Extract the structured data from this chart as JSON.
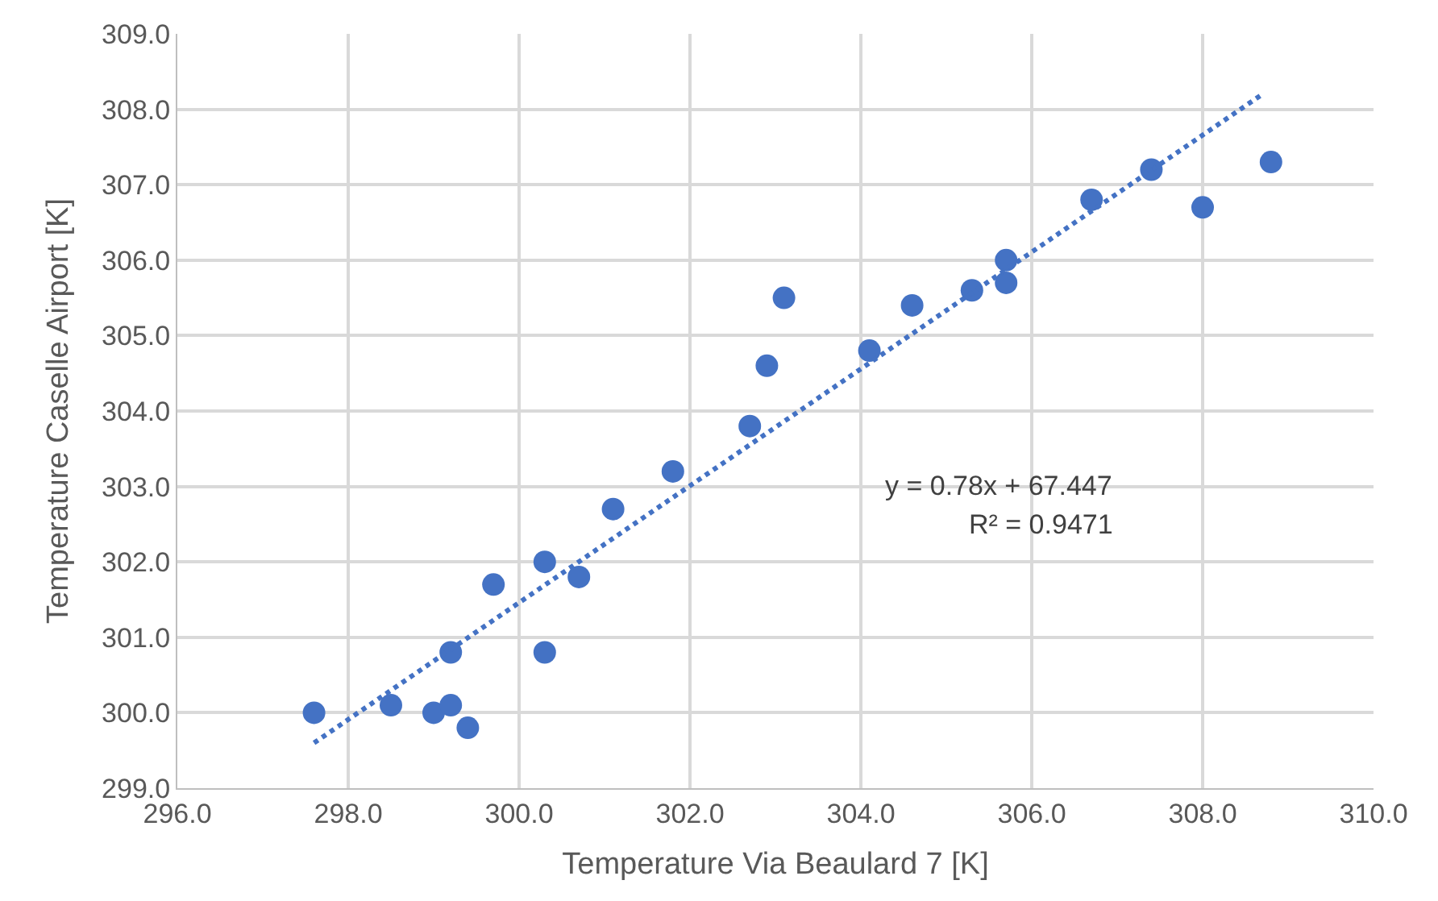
{
  "chart_data": {
    "type": "scatter",
    "xlabel": "Temperature Via Beaulard 7 [K]",
    "ylabel": "Temperature Caselle Airport [K]",
    "xlim": [
      296,
      310
    ],
    "xticks": [
      {
        "value": 296,
        "label": "296.0"
      },
      {
        "value": 298,
        "label": "298.0"
      },
      {
        "value": 300,
        "label": "300.0"
      },
      {
        "value": 302,
        "label": "302.0"
      },
      {
        "value": 304,
        "label": "304.0"
      },
      {
        "value": 306,
        "label": "306.0"
      },
      {
        "value": 308,
        "label": "308.0"
      },
      {
        "value": 310,
        "label": "310.0"
      }
    ],
    "ylim": [
      299,
      309
    ],
    "yticks": [
      {
        "value": 299,
        "label": "299.0"
      },
      {
        "value": 300,
        "label": "300.0"
      },
      {
        "value": 301,
        "label": "301.0"
      },
      {
        "value": 302,
        "label": "302.0"
      },
      {
        "value": 303,
        "label": "303.0"
      },
      {
        "value": 304,
        "label": "304.0"
      },
      {
        "value": 305,
        "label": "305.0"
      },
      {
        "value": 306,
        "label": "306.0"
      },
      {
        "value": 307,
        "label": "307.0"
      },
      {
        "value": 308,
        "label": "308.0"
      },
      {
        "value": 309,
        "label": "309.0"
      }
    ],
    "grid": true,
    "series": [
      {
        "marker": "circle",
        "color": "#4472c4",
        "x": [
          297.6,
          298.5,
          299.0,
          299.2,
          299.4,
          299.2,
          299.7,
          300.3,
          300.3,
          300.7,
          301.1,
          301.8,
          302.7,
          302.9,
          303.1,
          304.1,
          304.6,
          305.3,
          305.7,
          305.7,
          306.7,
          307.4,
          308.0,
          308.8
        ],
        "values": [
          300.0,
          300.1,
          300.0,
          300.1,
          299.8,
          300.8,
          301.7,
          302.0,
          300.8,
          301.8,
          302.7,
          303.2,
          303.8,
          304.6,
          305.5,
          304.8,
          305.4,
          305.6,
          306.0,
          305.7,
          306.8,
          307.2,
          306.7,
          307.3
        ]
      },
      {
        "type": "line",
        "color": "#4472c4",
        "line_style": "dotted",
        "x": [
          297.6,
          308.7
        ],
        "values": [
          299.6,
          308.2
        ]
      }
    ],
    "annotations": [
      "y = 0.78x + 67.447",
      "R² = 0.9471"
    ]
  }
}
